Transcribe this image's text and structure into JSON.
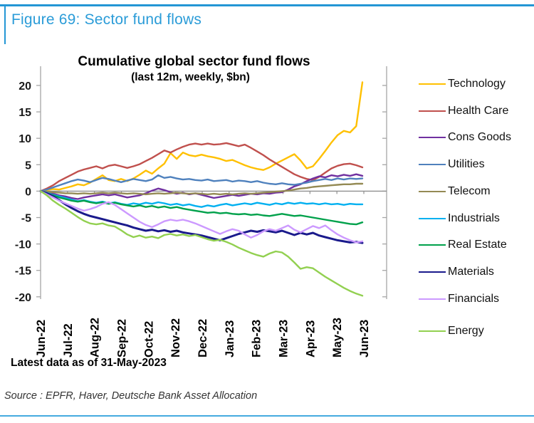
{
  "figure": {
    "title": "Figure 69: Sector fund flows"
  },
  "notes": {
    "latest": "Latest data as of 31-May-2023",
    "source": "Source : EPFR, Haver, Deutsche Bank Asset Allocation"
  },
  "colors": {
    "accent_blue": "#2B9CD8",
    "rule_blue_top": "#2396D5",
    "rule_blue_bottom": "#44AADF",
    "axis_gray": "#A6A6A6",
    "zero_line_gray": "#909090",
    "tick_label": "#1a1a1a"
  },
  "chart_data": {
    "type": "line",
    "title": "Cumulative global sector fund flows",
    "subtitle": "(last 12m, weekly, $bn)",
    "x_tick_labels": [
      "Jun-22",
      "Jul-22",
      "Aug-22",
      "Sep-22",
      "Oct-22",
      "Nov-22",
      "Dec-22",
      "Jan-23",
      "Feb-23",
      "Mar-23",
      "Apr-23",
      "May-23",
      "Jun-23"
    ],
    "y_ticks": [
      20,
      15,
      10,
      5,
      0,
      -5,
      -10,
      -15,
      -20
    ],
    "ylim": [
      -20.5,
      23.5
    ],
    "grid": "none",
    "legend_position": "right",
    "frequency": "weekly",
    "series": [
      {
        "name": "Technology",
        "color": "#FFC000",
        "values": [
          0,
          0.2,
          0.4,
          0.3,
          0.6,
          0.9,
          1.3,
          1.1,
          1.6,
          2.3,
          3.0,
          2.1,
          1.9,
          2.3,
          1.9,
          2.4,
          3.1,
          3.9,
          3.3,
          4.3,
          5.2,
          7.2,
          6.1,
          7.3,
          6.8,
          6.6,
          6.9,
          6.6,
          6.4,
          6.1,
          5.7,
          5.9,
          5.4,
          4.9,
          4.5,
          4.2,
          4.0,
          4.5,
          5.2,
          5.8,
          6.4,
          7.0,
          5.8,
          4.3,
          4.7,
          6.1,
          7.6,
          9.2,
          10.6,
          11.4,
          11.1,
          12.3,
          20.6
        ]
      },
      {
        "name": "Health Care",
        "color": "#C0504D",
        "values": [
          0,
          0.5,
          1.1,
          1.9,
          2.5,
          3.1,
          3.7,
          4.1,
          4.4,
          4.7,
          4.3,
          4.8,
          5.0,
          4.7,
          4.4,
          4.7,
          5.1,
          5.7,
          6.3,
          7.0,
          7.7,
          7.3,
          7.9,
          8.4,
          8.8,
          9.0,
          8.8,
          9.0,
          8.8,
          8.9,
          9.1,
          8.8,
          8.5,
          8.8,
          8.2,
          7.5,
          6.8,
          6.0,
          5.3,
          4.6,
          3.9,
          3.2,
          2.7,
          2.3,
          2.1,
          2.7,
          3.5,
          4.3,
          4.8,
          5.1,
          5.2,
          4.9,
          4.5
        ]
      },
      {
        "name": "Cons Goods",
        "color": "#7030A0",
        "values": [
          0,
          -0.2,
          -0.5,
          -0.8,
          -1.0,
          -1.3,
          -1.5,
          -1.2,
          -1.0,
          -0.8,
          -0.6,
          -0.8,
          -0.6,
          -0.9,
          -1.2,
          -1.0,
          -0.8,
          -0.4,
          0.1,
          0.5,
          0.2,
          -0.2,
          -0.5,
          -0.3,
          -0.6,
          -0.4,
          -0.7,
          -1.0,
          -1.3,
          -1.1,
          -0.9,
          -0.7,
          -0.9,
          -0.7,
          -0.5,
          -0.6,
          -0.4,
          -0.5,
          -0.3,
          -0.2,
          0.3,
          0.9,
          1.3,
          1.9,
          2.4,
          2.8,
          2.6,
          3.0,
          2.8,
          3.1,
          2.9,
          3.2,
          2.9
        ]
      },
      {
        "name": "Utilities",
        "color": "#4F81BD",
        "values": [
          0,
          0.3,
          0.7,
          1.1,
          1.5,
          1.9,
          2.2,
          2.0,
          1.7,
          2.1,
          2.5,
          2.3,
          2.0,
          1.7,
          2.0,
          2.3,
          2.1,
          1.9,
          2.2,
          3.0,
          2.5,
          2.7,
          2.4,
          2.2,
          2.3,
          2.1,
          2.0,
          2.2,
          1.9,
          2.0,
          2.1,
          1.8,
          2.0,
          1.9,
          1.7,
          1.9,
          1.6,
          1.4,
          1.3,
          1.5,
          1.3,
          1.2,
          1.4,
          1.6,
          1.9,
          2.1,
          2.3,
          2.1,
          2.4,
          2.2,
          2.4,
          2.3,
          2.4
        ]
      },
      {
        "name": "Telecom",
        "color": "#948A54",
        "values": [
          0,
          -0.1,
          -0.2,
          -0.3,
          -0.4,
          -0.4,
          -0.5,
          -0.4,
          -0.5,
          -0.4,
          -0.3,
          -0.4,
          -0.3,
          -0.4,
          -0.5,
          -0.4,
          -0.5,
          -0.6,
          -0.5,
          -0.4,
          -0.5,
          -0.4,
          -0.3,
          -0.4,
          -0.5,
          -0.4,
          -0.5,
          -0.6,
          -0.5,
          -0.6,
          -0.5,
          -0.6,
          -0.5,
          -0.4,
          -0.5,
          -0.4,
          -0.3,
          -0.2,
          -0.1,
          0.0,
          0.1,
          0.3,
          0.5,
          0.6,
          0.8,
          0.9,
          1.0,
          1.1,
          1.2,
          1.3,
          1.3,
          1.4,
          1.4
        ]
      },
      {
        "name": "Industrials",
        "color": "#00B0F0",
        "values": [
          0,
          -0.3,
          -0.7,
          -1.0,
          -1.3,
          -1.6,
          -1.9,
          -1.7,
          -2.0,
          -2.2,
          -2.0,
          -2.3,
          -2.1,
          -2.4,
          -2.6,
          -2.3,
          -2.5,
          -2.2,
          -2.4,
          -2.1,
          -2.3,
          -2.6,
          -2.4,
          -2.7,
          -2.5,
          -2.8,
          -3.0,
          -2.7,
          -2.9,
          -2.6,
          -2.4,
          -2.7,
          -2.5,
          -2.3,
          -2.5,
          -2.2,
          -2.4,
          -2.6,
          -2.3,
          -2.5,
          -2.2,
          -2.4,
          -2.2,
          -2.4,
          -2.3,
          -2.5,
          -2.3,
          -2.5,
          -2.4,
          -2.6,
          -2.4,
          -2.5,
          -2.5
        ]
      },
      {
        "name": "Real Estate",
        "color": "#00A14B",
        "values": [
          0,
          -0.4,
          -0.8,
          -1.2,
          -1.5,
          -1.8,
          -2.0,
          -1.8,
          -2.1,
          -2.3,
          -2.1,
          -2.4,
          -2.2,
          -2.5,
          -2.7,
          -2.9,
          -2.7,
          -3.0,
          -2.8,
          -3.1,
          -2.9,
          -3.2,
          -3.0,
          -3.3,
          -3.5,
          -3.7,
          -3.9,
          -4.1,
          -4.0,
          -4.2,
          -4.1,
          -4.3,
          -4.4,
          -4.3,
          -4.5,
          -4.4,
          -4.6,
          -4.7,
          -4.5,
          -4.3,
          -4.5,
          -4.7,
          -4.6,
          -4.8,
          -5.0,
          -5.2,
          -5.4,
          -5.6,
          -5.8,
          -6.0,
          -6.2,
          -6.3,
          -5.9
        ]
      },
      {
        "name": "Materials",
        "color": "#1A1A8C",
        "values": [
          0,
          -0.4,
          -1.0,
          -1.7,
          -2.5,
          -3.2,
          -3.8,
          -4.3,
          -4.7,
          -5.0,
          -5.3,
          -5.6,
          -5.9,
          -6.2,
          -6.5,
          -6.9,
          -7.2,
          -7.5,
          -7.3,
          -7.6,
          -7.4,
          -7.7,
          -7.5,
          -7.8,
          -8.0,
          -8.2,
          -8.4,
          -8.7,
          -9.0,
          -9.3,
          -8.9,
          -8.5,
          -8.1,
          -7.8,
          -7.5,
          -7.7,
          -7.4,
          -7.6,
          -7.8,
          -7.5,
          -7.9,
          -8.3,
          -7.9,
          -8.2,
          -7.9,
          -8.4,
          -8.7,
          -9.0,
          -9.3,
          -9.5,
          -9.7,
          -9.6,
          -9.8
        ]
      },
      {
        "name": "Financials",
        "color": "#CC99FF",
        "values": [
          0,
          -0.6,
          -1.2,
          -1.8,
          -2.3,
          -2.8,
          -3.3,
          -3.7,
          -3.4,
          -3.0,
          -2.4,
          -2.1,
          -2.6,
          -3.4,
          -4.2,
          -5.0,
          -5.8,
          -6.4,
          -6.8,
          -6.3,
          -5.7,
          -5.4,
          -5.6,
          -5.4,
          -5.7,
          -6.1,
          -6.6,
          -7.1,
          -7.6,
          -8.1,
          -7.6,
          -7.2,
          -7.5,
          -8.2,
          -8.8,
          -8.3,
          -7.6,
          -7.2,
          -7.5,
          -7.0,
          -6.5,
          -7.3,
          -7.8,
          -7.2,
          -6.6,
          -7.0,
          -6.5,
          -7.4,
          -8.2,
          -8.8,
          -9.3,
          -9.7,
          -9.5
        ]
      },
      {
        "name": "Energy",
        "color": "#92D050",
        "values": [
          0,
          -0.8,
          -1.8,
          -2.6,
          -3.3,
          -4.1,
          -4.9,
          -5.6,
          -6.1,
          -6.3,
          -6.1,
          -6.5,
          -6.7,
          -7.4,
          -8.2,
          -8.7,
          -8.4,
          -8.8,
          -8.6,
          -8.9,
          -8.3,
          -8.1,
          -8.4,
          -8.2,
          -8.5,
          -8.3,
          -8.7,
          -9.1,
          -9.4,
          -9.2,
          -9.6,
          -10.1,
          -10.7,
          -11.2,
          -11.7,
          -12.1,
          -12.4,
          -11.8,
          -11.4,
          -11.6,
          -12.4,
          -13.5,
          -14.7,
          -14.4,
          -14.6,
          -15.4,
          -16.2,
          -16.9,
          -17.6,
          -18.3,
          -18.9,
          -19.4,
          -19.8
        ]
      }
    ]
  }
}
